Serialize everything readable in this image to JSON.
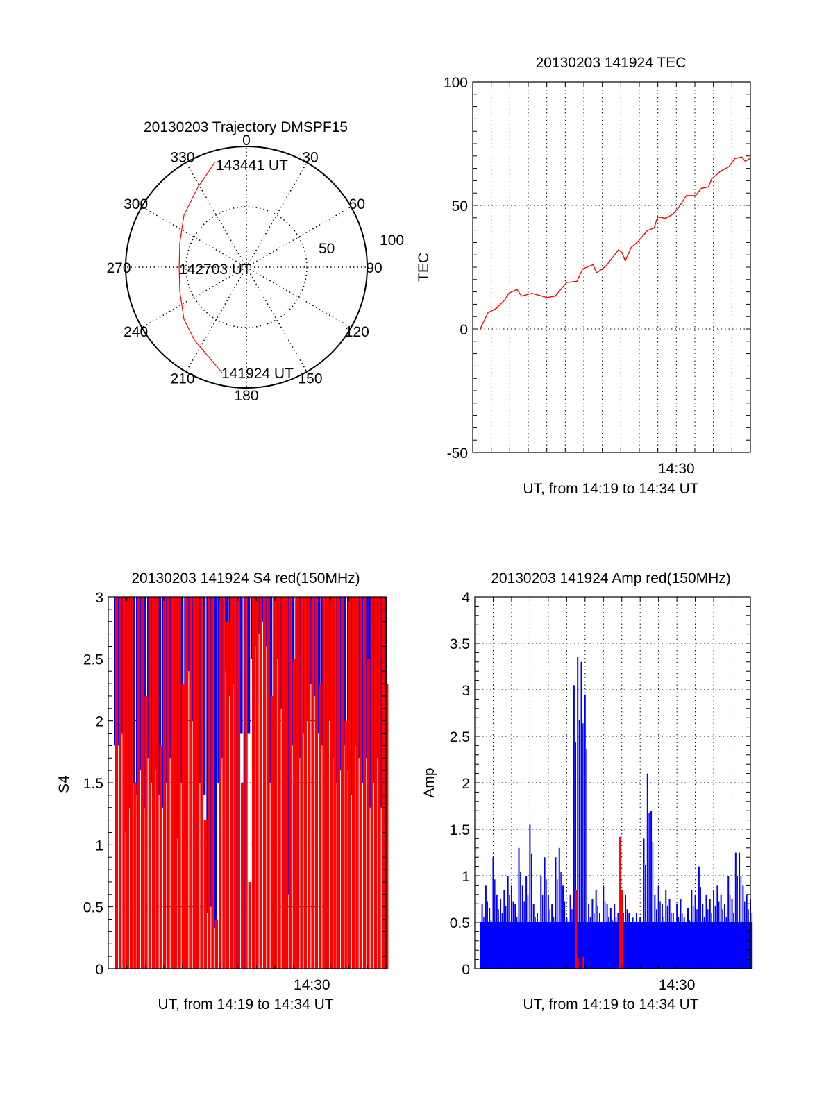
{
  "chart_data": [
    {
      "type": "polar",
      "title": "20130203 Trajectory DMSPF15",
      "angle_labels": [
        "0",
        "30",
        "60",
        "90",
        "120",
        "150",
        "180",
        "210",
        "240",
        "270",
        "300",
        "330"
      ],
      "radial_labels": [
        "50",
        "100"
      ],
      "rlim": [
        0,
        100
      ],
      "series": [
        {
          "name": "trajectory",
          "color": "#ff0000",
          "azimuth_deg": [
            193,
            215.5,
            230.2,
            250,
            270,
            290,
            309.8,
            328.7,
            343.5
          ],
          "radius": [
            89.7,
            74.2,
            67.3,
            58.7,
            55.7,
            58.7,
            67.3,
            77.4,
            91
          ]
        }
      ],
      "annotations": {
        "start": "141924 UT",
        "middle": "142703 UT",
        "end": "143441 UT"
      }
    },
    {
      "type": "line",
      "title": "20130203 141924 TEC",
      "ylabel": "TEC",
      "xlabel": "UT, from 14:19 to 14:34 UT",
      "x_unit": "minutes after 14:19",
      "xlim": [
        0,
        15
      ],
      "ylim": [
        -50,
        100
      ],
      "yticks": [
        "-50",
        "0",
        "50",
        "100"
      ],
      "ytick_values": [
        -50,
        0,
        50,
        100
      ],
      "xticks": [
        "14:30"
      ],
      "xtick_values": [
        11
      ],
      "grid": true,
      "series": [
        {
          "name": "TEC",
          "color": "#ff0000",
          "x": [
            0.4,
            0.83,
            1.27,
            1.71,
            1.96,
            2.39,
            2.64,
            3.2,
            4.01,
            4.45,
            5.07,
            5.63,
            5.94,
            6.5,
            6.69,
            7.19,
            7.87,
            8.06,
            8.24,
            8.56,
            8.93,
            9.43,
            9.8,
            9.99,
            10.42,
            10.8,
            11.11,
            11.54,
            12.04,
            12.35,
            12.73,
            12.91,
            13.41,
            13.85,
            14.16,
            14.53,
            14.72,
            14.97
          ],
          "y": [
            0,
            6.6,
            8.3,
            11.6,
            14.5,
            16,
            13.3,
            14.4,
            12.7,
            13.3,
            18.8,
            19.3,
            24.3,
            26,
            22.7,
            25.4,
            32,
            31,
            27.6,
            33,
            35.4,
            39.8,
            40.9,
            45.3,
            44.8,
            46.4,
            49,
            54,
            54,
            56.9,
            57.5,
            60.8,
            64,
            65.7,
            69,
            69.6,
            67.9,
            69
          ]
        }
      ]
    },
    {
      "type": "bar",
      "title": "20130203 141924 S4 red(150MHz)",
      "ylabel": "S4",
      "xlabel": "UT, from 14:19 to 14:34 UT",
      "x_unit": "minutes after 14:19",
      "xlim": [
        0,
        15
      ],
      "ylim": [
        0,
        3
      ],
      "yticks": [
        "0",
        "0.5",
        "1",
        "1.5",
        "2",
        "2.5",
        "3"
      ],
      "ytick_values": [
        0,
        0.5,
        1,
        1.5,
        2,
        2.5,
        3
      ],
      "xticks": [
        "14:30"
      ],
      "xtick_values": [
        11
      ],
      "grid": true,
      "t_start": 0.4,
      "t_step": 0.2,
      "series": [
        {
          "name": "blue",
          "color": "#0000ff",
          "min_values": [
            1.8,
            1.8,
            1.9,
            1.1,
            1.3,
            1.5,
            1.4,
            1.6,
            1.3,
            1.7,
            1.5,
            1.6,
            1.4,
            1.3,
            1.5,
            1.7,
            1.6,
            1.05,
            1.5,
            2.2,
            2.4,
            2.0,
            1.6,
            1.5,
            1.4,
            0.45,
            0.5,
            0.33,
            1.5,
            1.7,
            2.4,
            2.2,
            2.3,
            0.0,
            1.9,
            0.0,
            1.9,
            2.5,
            2.6,
            2.7,
            2.8,
            2.6,
            1.5,
            1.7,
            2.5,
            2.1,
            1.6,
            0.6,
            1.8,
            2.1,
            1.7,
            1.9,
            2.0,
            2.3,
            2.2,
            1.9,
            1.8,
            0.0,
            2.0,
            1.7,
            1.5,
            1.6,
            1.8,
            1.6,
            1.4,
            1.8,
            1.7,
            1.5,
            1.7,
            1.3,
            1.5,
            1.7,
            1.3,
            1.2
          ]
        },
        {
          "name": "red",
          "color": "#ff0000",
          "values": [
            3,
            3,
            3,
            3,
            3,
            1.5,
            3,
            3,
            2.2,
            3,
            3,
            3,
            1.8,
            3,
            3,
            3,
            3,
            3,
            2.3,
            3,
            3,
            3,
            3,
            3,
            1.2,
            3,
            3,
            0.4,
            3,
            3,
            2.8,
            3,
            3,
            3,
            1.5,
            3,
            0.7,
            3,
            3,
            3,
            3,
            3,
            2.2,
            3,
            3,
            3,
            3,
            3,
            2.5,
            3,
            3,
            3,
            3,
            3,
            3,
            2.3,
            3,
            3,
            3,
            3,
            3,
            3,
            2.0,
            3,
            3,
            3,
            3,
            3,
            2.5,
            3,
            3,
            3,
            3,
            2.3
          ]
        }
      ]
    },
    {
      "type": "bar",
      "title": "20130203 141924 Amp red(150MHz)",
      "ylabel": "Amp",
      "xlabel": "UT, from 14:19 to 14:34 UT",
      "x_unit": "minutes after 14:19",
      "xlim": [
        0,
        15
      ],
      "ylim": [
        0,
        4
      ],
      "yticks": [
        "0",
        "0.5",
        "1",
        "1.5",
        "2",
        "2.5",
        "3",
        "3.5",
        "4"
      ],
      "ytick_values": [
        0,
        0.5,
        1,
        1.5,
        2,
        2.5,
        3,
        3.5,
        4
      ],
      "xticks": [
        "14:30"
      ],
      "xtick_values": [
        11
      ],
      "grid": true,
      "t_start": 0.4,
      "t_step": 0.2,
      "series": [
        {
          "name": "blue",
          "color": "#0000ff",
          "values": [
            0.7,
            0.9,
            0.65,
            1.2,
            0.8,
            0.75,
            0.85,
            1.0,
            0.9,
            0.7,
            1.3,
            0.9,
            1.0,
            1.55,
            0.7,
            0.6,
            1.0,
            1.2,
            0.8,
            0.7,
            1.2,
            1.3,
            0.9,
            0.55,
            0.8,
            3.05,
            3.35,
            3.3,
            2.95,
            0.7,
            0.75,
            0.85,
            0.6,
            0.9,
            0.7,
            0.65,
            0.7,
            0.6,
            0.75,
            0.8,
            0.6,
            0.55,
            0.6,
            0.55,
            1.4,
            2.1,
            1.7,
            0.8,
            0.9,
            0.7,
            0.85,
            0.75,
            0.6,
            0.7,
            0.75,
            0.55,
            0.65,
            0.85,
            0.8,
            1.1,
            0.7,
            0.8,
            0.75,
            0.85,
            0.9,
            0.8,
            0.7,
            1.0,
            0.75,
            1.25,
            1.25,
            0.9,
            0.8,
            0.75
          ]
        },
        {
          "name": "red",
          "color": "#ff0000",
          "x": [
            5.5,
            5.6,
            5.9,
            7.9,
            8.0
          ],
          "y": [
            0.85,
            0.12,
            0.13,
            1.42,
            0.85
          ]
        }
      ]
    }
  ]
}
